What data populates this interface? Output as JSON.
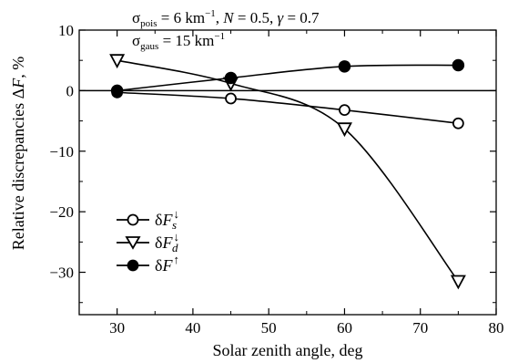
{
  "chart_data": {
    "type": "line",
    "xlabel": "Solar zenith angle, deg",
    "ylabel": "Relative discrepancies ΔF, %",
    "xlim": [
      25,
      80
    ],
    "ylim": [
      -37,
      10
    ],
    "xticks": [
      30,
      40,
      50,
      60,
      70,
      80
    ],
    "yticks": [
      10,
      0,
      -10,
      -20,
      -30
    ],
    "zero_line": true,
    "annotations": [
      "σpois = 6 km−1, N = 0.5, γ = 0.7",
      "σgaus = 15 km−1"
    ],
    "legend_position": "lower-left",
    "series": [
      {
        "name": "δF_s↓",
        "marker": "open-circle",
        "x": [
          30,
          45,
          60,
          75
        ],
        "y": [
          -0.3,
          -1.3,
          -3.2,
          -5.4
        ]
      },
      {
        "name": "δF_d↓",
        "marker": "open-triangle-down",
        "x": [
          30,
          45,
          60,
          75
        ],
        "y": [
          5.0,
          1.2,
          -6.3,
          -31.5
        ]
      },
      {
        "name": "δF↑",
        "marker": "filled-circle",
        "x": [
          30,
          45,
          60,
          75
        ],
        "y": [
          0.0,
          2.1,
          4.0,
          4.2
        ]
      }
    ]
  },
  "labels": {
    "ylabel_main": "Relative discrepancies Δ",
    "ylabel_var": "F",
    "ylabel_unit": ", %",
    "xlabel": "Solar zenith angle, deg",
    "anno1_sigma": "σ",
    "anno1_sub": "pois",
    "anno1_rest": " = 6 km",
    "anno1_sup": "−1",
    "anno1_tail1": ", ",
    "anno1_N": "N",
    "anno1_tail2": " = 0.5, ",
    "anno1_gamma": "γ",
    "anno1_tail3": " = 0.7",
    "anno2_sigma": "σ",
    "anno2_sub": "gaus",
    "anno2_rest": " = 15 km",
    "anno2_sup": "−1",
    "legend_delta": "δ",
    "legend_F": "F",
    "legend_down": "↓",
    "legend_up": "↑",
    "legend_s": "s",
    "legend_d": "d"
  }
}
